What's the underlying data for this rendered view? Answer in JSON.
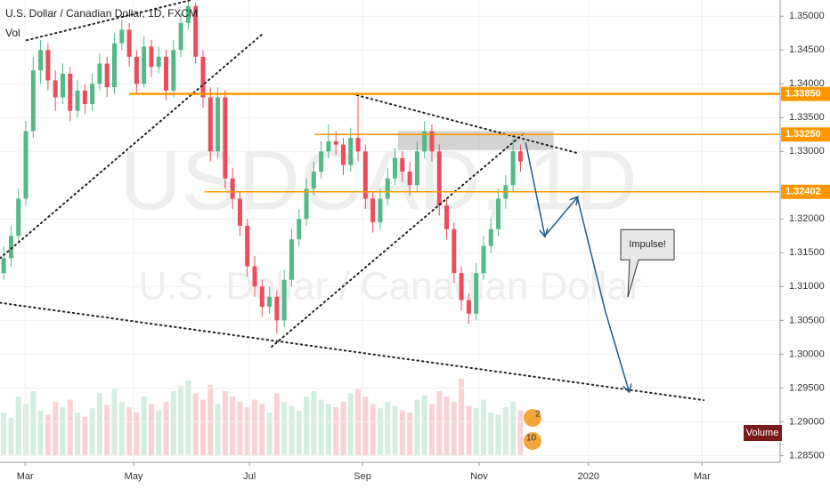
{
  "chart_data": {
    "type": "candlestick",
    "title": "U.S. Dollar / Canadian Dollar, 1D, FXCM",
    "volume_legend": "Vol",
    "volume_label": "Volume",
    "watermark": [
      "USDCAD, 1D",
      "U.S. Dollar / Canadian Dollar"
    ],
    "up_color": "#53b987",
    "down_color": "#eb4d5c",
    "xlim": [
      -0.5,
      105.05
    ],
    "ylim": [
      1.284,
      1.3524
    ],
    "xticks": [
      {
        "value": 2.9,
        "label": "Mar"
      },
      {
        "value": 17.6,
        "label": "May"
      },
      {
        "value": 33.3,
        "label": "Jul"
      },
      {
        "value": 48.6,
        "label": "Sep"
      },
      {
        "value": 64.4,
        "label": "Nov"
      },
      {
        "value": 79.2,
        "label": "2020"
      },
      {
        "value": 94.6,
        "label": "Mar"
      }
    ],
    "yticks": [
      {
        "value": 1.285,
        "label": "1.28500"
      },
      {
        "value": 1.29,
        "label": "1.29000"
      },
      {
        "value": 1.295,
        "label": "1.29500"
      },
      {
        "value": 1.3,
        "label": "1.30000"
      },
      {
        "value": 1.305,
        "label": "1.30500"
      },
      {
        "value": 1.31,
        "label": "1.31000"
      },
      {
        "value": 1.315,
        "label": "1.31500"
      },
      {
        "value": 1.32,
        "label": "1.32000"
      },
      {
        "value": 1.33,
        "label": "1.33000"
      },
      {
        "value": 1.335,
        "label": "1.33500"
      },
      {
        "value": 1.34,
        "label": "1.34000"
      },
      {
        "value": 1.345,
        "label": "1.34500"
      },
      {
        "value": 1.35,
        "label": "1.35000"
      }
    ],
    "x": [
      0,
      1,
      2,
      3,
      4,
      5,
      6,
      7,
      8,
      9,
      10,
      11,
      12,
      13,
      14,
      15,
      16,
      17,
      18,
      19,
      20,
      21,
      22,
      23,
      24,
      25,
      26,
      27,
      28,
      29,
      30,
      31,
      32,
      33,
      34,
      35,
      36,
      37,
      38,
      39,
      40,
      41,
      42,
      43,
      44,
      45,
      46,
      47,
      48,
      49,
      50,
      51,
      52,
      53,
      54,
      55,
      56,
      57,
      58,
      59,
      60,
      61,
      62,
      63,
      64,
      65,
      66,
      67,
      68,
      69,
      70
    ],
    "candles": [
      [
        1.312,
        1.316,
        1.311,
        1.3142
      ],
      [
        1.3142,
        1.319,
        1.313,
        1.3175
      ],
      [
        1.3175,
        1.3245,
        1.3165,
        1.323
      ],
      [
        1.323,
        1.3345,
        1.322,
        1.333
      ],
      [
        1.333,
        1.344,
        1.332,
        1.342
      ],
      [
        1.342,
        1.3465,
        1.34,
        1.345
      ],
      [
        1.345,
        1.346,
        1.339,
        1.3405
      ],
      [
        1.3405,
        1.342,
        1.336,
        1.338
      ],
      [
        1.338,
        1.343,
        1.337,
        1.3415
      ],
      [
        1.3415,
        1.3425,
        1.3345,
        1.336
      ],
      [
        1.336,
        1.3405,
        1.335,
        1.339
      ],
      [
        1.339,
        1.34,
        1.3355,
        1.337
      ],
      [
        1.337,
        1.3415,
        1.336,
        1.34
      ],
      [
        1.34,
        1.3445,
        1.339,
        1.343
      ],
      [
        1.343,
        1.344,
        1.338,
        1.3395
      ],
      [
        1.3395,
        1.3475,
        1.3385,
        1.346
      ],
      [
        1.346,
        1.3495,
        1.345,
        1.348
      ],
      [
        1.348,
        1.349,
        1.3425,
        1.344
      ],
      [
        1.344,
        1.345,
        1.3385,
        1.34
      ],
      [
        1.34,
        1.347,
        1.3395,
        1.3455
      ],
      [
        1.3455,
        1.3465,
        1.341,
        1.3425
      ],
      [
        1.3425,
        1.3455,
        1.3415,
        1.344
      ],
      [
        1.344,
        1.345,
        1.3375,
        1.339
      ],
      [
        1.339,
        1.3465,
        1.338,
        1.345
      ],
      [
        1.345,
        1.3505,
        1.344,
        1.349
      ],
      [
        1.349,
        1.3525,
        1.348,
        1.3515
      ],
      [
        1.3515,
        1.352,
        1.343,
        1.344
      ],
      [
        1.344,
        1.345,
        1.3365,
        1.338
      ],
      [
        1.338,
        1.3395,
        1.3285,
        1.33
      ],
      [
        1.33,
        1.3395,
        1.329,
        1.338
      ],
      [
        1.338,
        1.339,
        1.3245,
        1.326
      ],
      [
        1.326,
        1.3275,
        1.3215,
        1.323
      ],
      [
        1.323,
        1.324,
        1.3175,
        1.319
      ],
      [
        1.319,
        1.32,
        1.3115,
        1.313
      ],
      [
        1.313,
        1.3145,
        1.3085,
        1.31
      ],
      [
        1.31,
        1.311,
        1.3055,
        1.307
      ],
      [
        1.307,
        1.31,
        1.306,
        1.3085
      ],
      [
        1.3085,
        1.3095,
        1.303,
        1.305
      ],
      [
        1.305,
        1.3125,
        1.304,
        1.311
      ],
      [
        1.311,
        1.3185,
        1.31,
        1.317
      ],
      [
        1.317,
        1.3215,
        1.316,
        1.32
      ],
      [
        1.32,
        1.326,
        1.319,
        1.3245
      ],
      [
        1.3245,
        1.3285,
        1.3235,
        1.327
      ],
      [
        1.327,
        1.3315,
        1.326,
        1.33
      ],
      [
        1.33,
        1.334,
        1.329,
        1.3315
      ],
      [
        1.3315,
        1.333,
        1.3295,
        1.331
      ],
      [
        1.331,
        1.332,
        1.3265,
        1.328
      ],
      [
        1.328,
        1.3335,
        1.327,
        1.332
      ],
      [
        1.332,
        1.338,
        1.3285,
        1.33
      ],
      [
        1.33,
        1.331,
        1.3215,
        1.323
      ],
      [
        1.323,
        1.324,
        1.318,
        1.3195
      ],
      [
        1.3195,
        1.3245,
        1.3185,
        1.323
      ],
      [
        1.323,
        1.3275,
        1.322,
        1.326
      ],
      [
        1.326,
        1.3305,
        1.325,
        1.329
      ],
      [
        1.329,
        1.33,
        1.3255,
        1.327
      ],
      [
        1.327,
        1.3285,
        1.3235,
        1.325
      ],
      [
        1.325,
        1.3315,
        1.324,
        1.33
      ],
      [
        1.33,
        1.3345,
        1.329,
        1.333
      ],
      [
        1.333,
        1.334,
        1.3285,
        1.33
      ],
      [
        1.33,
        1.331,
        1.3205,
        1.322
      ],
      [
        1.322,
        1.323,
        1.317,
        1.3185
      ],
      [
        1.3185,
        1.3195,
        1.3105,
        1.312
      ],
      [
        1.312,
        1.313,
        1.3065,
        1.308
      ],
      [
        1.308,
        1.309,
        1.3045,
        1.306
      ],
      [
        1.306,
        1.3135,
        1.305,
        1.312
      ],
      [
        1.312,
        1.3175,
        1.311,
        1.316
      ],
      [
        1.316,
        1.32,
        1.315,
        1.3185
      ],
      [
        1.3185,
        1.3245,
        1.3175,
        1.323
      ],
      [
        1.323,
        1.3265,
        1.3215,
        1.325
      ],
      [
        1.325,
        1.332,
        1.324,
        1.33
      ],
      [
        1.33,
        1.331,
        1.327,
        1.3285
      ]
    ],
    "volume": [
      40,
      35,
      55,
      48,
      60,
      42,
      38,
      50,
      45,
      52,
      40,
      36,
      44,
      58,
      47,
      62,
      50,
      45,
      40,
      55,
      48,
      42,
      50,
      60,
      65,
      70,
      58,
      52,
      66,
      48,
      60,
      55,
      50,
      45,
      52,
      48,
      40,
      58,
      50,
      46,
      42,
      55,
      60,
      52,
      48,
      45,
      50,
      58,
      62,
      55,
      48,
      44,
      50,
      46,
      42,
      40,
      52,
      56,
      48,
      60,
      55,
      50,
      72,
      46,
      44,
      52,
      40,
      38,
      45,
      50,
      42
    ],
    "levels": [
      {
        "value": 1.3385,
        "label": "1.33850",
        "x_start": 17
      },
      {
        "value": 1.3325,
        "label": "1.33250",
        "x_start": 42.1
      },
      {
        "value": 1.32402,
        "label": "1.32402",
        "x_start": 27.2
      }
    ],
    "level_color": "#ff9800",
    "trendlines": [
      {
        "x": [
          -0.5,
          35.1
        ],
        "y": [
          1.3142,
          1.3474
        ]
      },
      {
        "x": [
          3.1,
          25.4
        ],
        "y": [
          1.34645,
          1.3524
        ]
      },
      {
        "x": [
          36.3,
          70.7
        ],
        "y": [
          1.3011,
          1.3329
        ]
      },
      {
        "x": [
          47.2,
          77.9
        ],
        "y": [
          1.3385,
          1.3297
        ]
      },
      {
        "x": [
          -0.5,
          94.8
        ],
        "y": [
          1.3076,
          1.2932
        ]
      }
    ],
    "zone": {
      "x": [
        53.4,
        74.5
      ],
      "y": [
        1.3302,
        1.333
      ]
    },
    "projection": {
      "x": [
        70.7,
        73.3,
        77.7,
        81.5,
        84.7
      ],
      "y": [
        1.3313,
        1.3175,
        1.3232,
        1.3063,
        1.2945
      ],
      "color": "#1e5b8a"
    },
    "annotation": {
      "text": "Impulse!",
      "x": 87.2,
      "y": 1.3162
    },
    "events": [
      {
        "label": "2"
      },
      {
        "label": "10"
      }
    ]
  }
}
